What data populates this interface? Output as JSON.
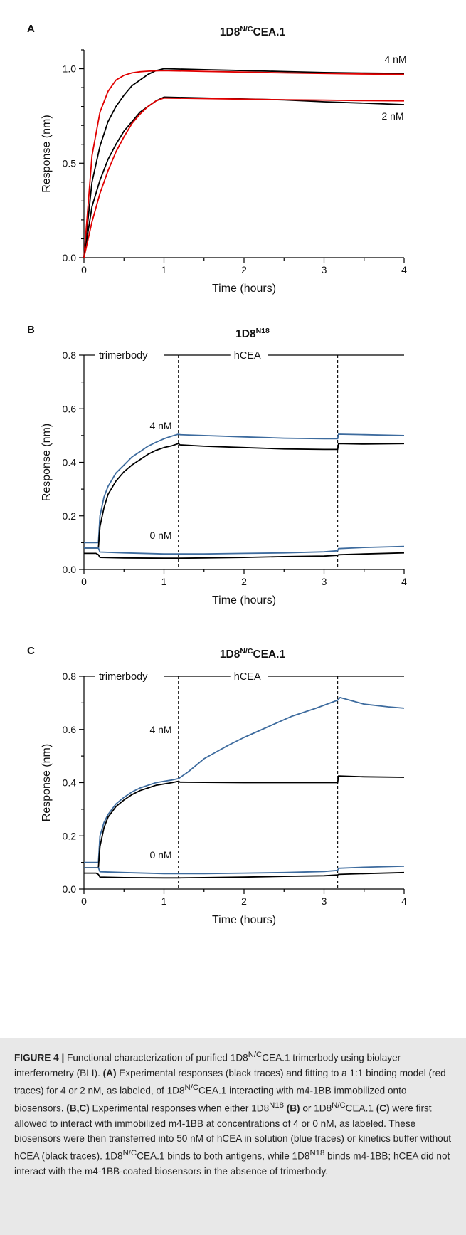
{
  "figure": {
    "panels": [
      {
        "letter": "A",
        "title_main": "1D8",
        "title_sup": "N/C",
        "title_rest": "CEA.1"
      },
      {
        "letter": "B",
        "title_main": "1D8",
        "title_sup": "N18",
        "title_rest": ""
      },
      {
        "letter": "C",
        "title_main": "1D8",
        "title_sup": "N/C",
        "title_rest": "CEA.1"
      }
    ]
  },
  "chart_data": [
    {
      "panel": "A",
      "type": "line",
      "title": "1D8N/CCEA.1",
      "xlabel": "Time (hours)",
      "ylabel": "Response (nm)",
      "xlim": [
        0,
        4
      ],
      "ylim": [
        0,
        1.1
      ],
      "xticks": [
        "0",
        "1",
        "2",
        "3",
        "4"
      ],
      "yticks": [
        "0.0",
        "0.5",
        "1.0"
      ],
      "annotations": [
        "4 nM",
        "2 nM"
      ],
      "series": [
        {
          "color": "#000000",
          "x": [
            0,
            0.1,
            0.2,
            0.3,
            0.4,
            0.5,
            0.6,
            0.7,
            0.8,
            0.9,
            1.0,
            1.5,
            2.0,
            2.5,
            3.0,
            3.5,
            4.0
          ],
          "y": [
            0,
            0.4,
            0.59,
            0.72,
            0.8,
            0.86,
            0.91,
            0.94,
            0.97,
            0.99,
            1.0,
            0.995,
            0.99,
            0.985,
            0.98,
            0.977,
            0.975
          ]
        },
        {
          "color": "#e00000",
          "x": [
            0,
            0.1,
            0.2,
            0.3,
            0.4,
            0.5,
            0.6,
            0.7,
            0.8,
            0.9,
            1.0,
            1.5,
            2.0,
            2.5,
            3.0,
            3.5,
            4.0
          ],
          "y": [
            0,
            0.54,
            0.77,
            0.88,
            0.94,
            0.965,
            0.978,
            0.984,
            0.987,
            0.989,
            0.99,
            0.986,
            0.982,
            0.978,
            0.975,
            0.972,
            0.97
          ]
        },
        {
          "color": "#000000",
          "x": [
            0,
            0.1,
            0.2,
            0.3,
            0.4,
            0.5,
            0.6,
            0.7,
            0.8,
            0.9,
            1.0,
            1.5,
            2.0,
            2.5,
            3.0,
            3.5,
            4.0
          ],
          "y": [
            0,
            0.27,
            0.41,
            0.52,
            0.6,
            0.67,
            0.72,
            0.77,
            0.8,
            0.83,
            0.85,
            0.845,
            0.84,
            0.835,
            0.825,
            0.818,
            0.81
          ]
        },
        {
          "color": "#e00000",
          "x": [
            0,
            0.1,
            0.2,
            0.3,
            0.4,
            0.5,
            0.6,
            0.7,
            0.8,
            0.9,
            1.0,
            1.5,
            2.0,
            2.5,
            3.0,
            3.5,
            4.0
          ],
          "y": [
            0,
            0.19,
            0.34,
            0.46,
            0.56,
            0.64,
            0.71,
            0.76,
            0.8,
            0.83,
            0.845,
            0.842,
            0.839,
            0.836,
            0.834,
            0.831,
            0.83
          ]
        }
      ]
    },
    {
      "panel": "B",
      "type": "line",
      "title": "1D8N18",
      "xlabel": "Time (hours)",
      "ylabel": "Response (nm)",
      "xlim": [
        0,
        4
      ],
      "ylim": [
        0,
        0.8
      ],
      "xticks": [
        "0",
        "1",
        "2",
        "3",
        "4"
      ],
      "yticks": [
        "0.0",
        "0.2",
        "0.4",
        "0.6",
        "0.8"
      ],
      "phase_lines": [
        1.18,
        3.17
      ],
      "phases": [
        "trimerbody",
        "hCEA"
      ],
      "annotations": [
        "4 nM",
        "0 nM"
      ],
      "series": [
        {
          "color": "#3d6b9e",
          "x": [
            0,
            0.05,
            0.15,
            0.18,
            0.2,
            0.25,
            0.3,
            0.4,
            0.5,
            0.6,
            0.7,
            0.8,
            0.9,
            1.0,
            1.1,
            1.18,
            1.2,
            1.5,
            2.0,
            2.5,
            3.0,
            3.17,
            3.18,
            3.5,
            4.0
          ],
          "y": [
            0.1,
            0.1,
            0.1,
            0.1,
            0.2,
            0.27,
            0.31,
            0.36,
            0.39,
            0.42,
            0.44,
            0.46,
            0.475,
            0.488,
            0.498,
            0.505,
            0.503,
            0.5,
            0.495,
            0.49,
            0.488,
            0.488,
            0.505,
            0.503,
            0.5
          ]
        },
        {
          "color": "#000000",
          "x": [
            0,
            0.05,
            0.15,
            0.18,
            0.2,
            0.25,
            0.3,
            0.4,
            0.5,
            0.6,
            0.7,
            0.8,
            0.9,
            1.0,
            1.1,
            1.18,
            1.2,
            1.5,
            2.0,
            2.5,
            3.0,
            3.17,
            3.18,
            3.5,
            4.0
          ],
          "y": [
            0.08,
            0.08,
            0.08,
            0.08,
            0.16,
            0.23,
            0.28,
            0.33,
            0.365,
            0.39,
            0.41,
            0.43,
            0.445,
            0.455,
            0.462,
            0.47,
            0.465,
            0.46,
            0.455,
            0.45,
            0.448,
            0.448,
            0.47,
            0.468,
            0.47
          ]
        },
        {
          "color": "#3d6b9e",
          "x": [
            0,
            0.05,
            0.15,
            0.18,
            0.2,
            0.5,
            1.0,
            1.18,
            1.5,
            2.0,
            2.5,
            3.0,
            3.17,
            3.18,
            3.5,
            4.0
          ],
          "y": [
            0.08,
            0.08,
            0.08,
            0.08,
            0.065,
            0.062,
            0.058,
            0.058,
            0.058,
            0.06,
            0.062,
            0.066,
            0.07,
            0.078,
            0.082,
            0.086
          ]
        },
        {
          "color": "#000000",
          "x": [
            0,
            0.05,
            0.15,
            0.18,
            0.2,
            0.5,
            1.0,
            1.18,
            1.5,
            2.0,
            2.5,
            3.0,
            3.17,
            3.18,
            3.5,
            4.0
          ],
          "y": [
            0.06,
            0.06,
            0.06,
            0.055,
            0.045,
            0.043,
            0.042,
            0.042,
            0.043,
            0.045,
            0.048,
            0.05,
            0.053,
            0.055,
            0.058,
            0.062
          ]
        }
      ]
    },
    {
      "panel": "C",
      "type": "line",
      "title": "1D8N/CCEA.1",
      "xlabel": "Time (hours)",
      "ylabel": "Response (nm)",
      "xlim": [
        0,
        4
      ],
      "ylim": [
        0,
        0.8
      ],
      "xticks": [
        "0",
        "1",
        "2",
        "3",
        "4"
      ],
      "yticks": [
        "0.0",
        "0.2",
        "0.4",
        "0.6",
        "0.8"
      ],
      "phase_lines": [
        1.18,
        3.17
      ],
      "phases": [
        "trimerbody",
        "hCEA"
      ],
      "annotations": [
        "4 nM",
        "0 nM"
      ],
      "series": [
        {
          "color": "#3d6b9e",
          "x": [
            0,
            0.05,
            0.15,
            0.18,
            0.2,
            0.25,
            0.3,
            0.4,
            0.5,
            0.6,
            0.7,
            0.8,
            0.9,
            1.0,
            1.1,
            1.18,
            1.3,
            1.5,
            1.8,
            2.0,
            2.3,
            2.6,
            2.9,
            3.17,
            3.2,
            3.5,
            3.8,
            4.0
          ],
          "y": [
            0.1,
            0.1,
            0.1,
            0.1,
            0.2,
            0.25,
            0.28,
            0.32,
            0.345,
            0.365,
            0.38,
            0.39,
            0.4,
            0.405,
            0.41,
            0.415,
            0.44,
            0.49,
            0.54,
            0.57,
            0.61,
            0.65,
            0.68,
            0.71,
            0.72,
            0.695,
            0.685,
            0.68
          ]
        },
        {
          "color": "#000000",
          "x": [
            0,
            0.05,
            0.15,
            0.18,
            0.2,
            0.25,
            0.3,
            0.4,
            0.5,
            0.6,
            0.7,
            0.8,
            0.9,
            1.0,
            1.1,
            1.18,
            1.2,
            1.5,
            2.0,
            2.5,
            3.0,
            3.17,
            3.18,
            3.5,
            4.0
          ],
          "y": [
            0.08,
            0.08,
            0.08,
            0.08,
            0.16,
            0.23,
            0.27,
            0.31,
            0.335,
            0.355,
            0.37,
            0.38,
            0.39,
            0.395,
            0.4,
            0.405,
            0.402,
            0.401,
            0.4,
            0.4,
            0.4,
            0.4,
            0.425,
            0.422,
            0.42
          ]
        },
        {
          "color": "#3d6b9e",
          "x": [
            0,
            0.05,
            0.15,
            0.18,
            0.2,
            0.5,
            1.0,
            1.18,
            1.5,
            2.0,
            2.5,
            3.0,
            3.17,
            3.18,
            3.5,
            4.0
          ],
          "y": [
            0.08,
            0.08,
            0.08,
            0.08,
            0.065,
            0.062,
            0.058,
            0.058,
            0.058,
            0.06,
            0.062,
            0.066,
            0.07,
            0.078,
            0.082,
            0.086
          ]
        },
        {
          "color": "#000000",
          "x": [
            0,
            0.05,
            0.15,
            0.18,
            0.2,
            0.5,
            1.0,
            1.18,
            1.5,
            2.0,
            2.5,
            3.0,
            3.17,
            3.18,
            3.5,
            4.0
          ],
          "y": [
            0.06,
            0.06,
            0.06,
            0.055,
            0.045,
            0.043,
            0.042,
            0.042,
            0.043,
            0.045,
            0.048,
            0.05,
            0.053,
            0.055,
            0.058,
            0.062
          ]
        }
      ]
    }
  ],
  "caption": {
    "fig_label": "FIGURE 4 |",
    "t1": " Functional characterization of purified 1D8",
    "t1_sup": "N/C",
    "t2": "CEA.1 trimerbody using biolayer interferometry (BLI). ",
    "lab_a": "(A)",
    "t3": " Experimental responses (black traces) and fitting to a 1:1 binding model (red traces) for 4 or 2 nM, as labeled, of 1D8",
    "t3_sup": "N/C",
    "t4": "CEA.1 interacting with m4-1BB immobilized onto biosensors. ",
    "lab_bc": "(B,C)",
    "t5": " Experimental responses when either 1D8",
    "t5_sup": "N18",
    "lab_b": " (B)",
    "t6": " or 1D8",
    "t6_sup": "N/C",
    "t7": "CEA.1",
    "lab_c": " (C)",
    "t8": " were first allowed to interact with immobilized m4-1BB at concentrations of 4 or 0 nM, as labeled. These biosensors were then transferred into 50 nM of hCEA in solution (blue traces) or kinetics buffer without hCEA (black traces). 1D8",
    "t8_sup": "N/C",
    "t9": "CEA.1 binds to both antigens, while 1D8",
    "t9_sup": "N18",
    "t10": " binds m4-1BB; hCEA did not interact with the m4-1BB-coated biosensors in the absence of trimerbody."
  }
}
